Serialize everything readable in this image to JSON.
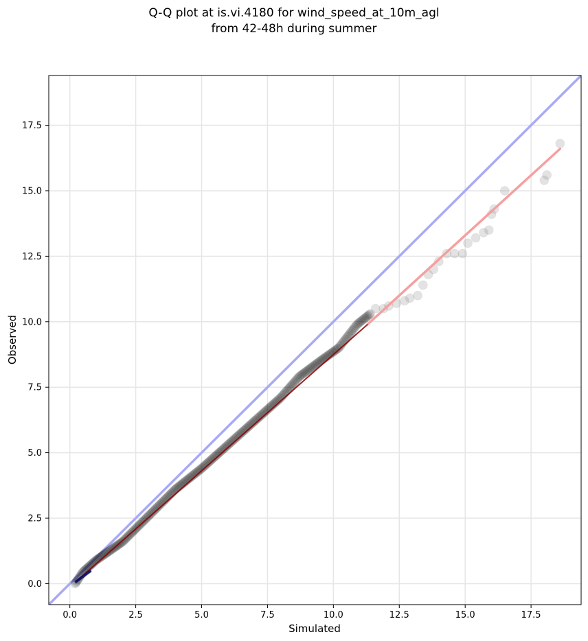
{
  "chart_data": {
    "type": "scatter",
    "title": "Q-Q plot at is.vi.4180 for wind_speed_at_10m_agl",
    "subtitle": "from 42-48h during summer",
    "xlabel": "Simulated",
    "ylabel": "Observed",
    "xlim": [
      -0.8,
      19.4
    ],
    "ylim": [
      -0.8,
      19.4
    ],
    "xticks": [
      "0.0",
      "2.5",
      "5.0",
      "7.5",
      "10.0",
      "12.5",
      "15.0",
      "17.5"
    ],
    "yticks": [
      "0.0",
      "2.5",
      "5.0",
      "7.5",
      "10.0",
      "12.5",
      "15.0",
      "17.5"
    ],
    "xtick_values": [
      0,
      2.5,
      5,
      7.5,
      10,
      12.5,
      15,
      17.5
    ],
    "ytick_values": [
      0,
      2.5,
      5,
      7.5,
      10,
      12.5,
      15,
      17.5
    ],
    "grid": true,
    "reference_line": {
      "x": [
        -0.8,
        19.4
      ],
      "y": [
        -0.8,
        19.4
      ],
      "color": "#a8aaf4"
    },
    "fit_line_dense": {
      "x": [
        0.2,
        11.3
      ],
      "y": [
        0.05,
        9.9
      ],
      "color": "#8b0000"
    },
    "fit_line_tail": {
      "x": [
        11.3,
        18.6
      ],
      "y": [
        9.9,
        16.6
      ],
      "color": "#f4a0a0"
    },
    "dense_segment": {
      "x": [
        0.2,
        0.8
      ],
      "y": [
        0.05,
        0.5
      ],
      "color": "#0b0b6b"
    },
    "points_dense_envelope": [
      [
        0.2,
        0.0
      ],
      [
        0.5,
        0.45
      ],
      [
        1.0,
        0.9
      ],
      [
        2.0,
        1.6
      ],
      [
        3.0,
        2.6
      ],
      [
        4.0,
        3.6
      ],
      [
        5.0,
        4.4
      ],
      [
        6.0,
        5.3
      ],
      [
        7.0,
        6.2
      ],
      [
        8.0,
        7.1
      ],
      [
        8.7,
        7.9
      ],
      [
        9.5,
        8.5
      ],
      [
        10.2,
        9.0
      ],
      [
        10.9,
        9.9
      ],
      [
        11.4,
        10.3
      ]
    ],
    "points_tail": [
      [
        11.6,
        10.5
      ],
      [
        11.9,
        10.5
      ],
      [
        12.1,
        10.6
      ],
      [
        12.4,
        10.7
      ],
      [
        12.7,
        10.8
      ],
      [
        12.9,
        10.9
      ],
      [
        13.2,
        11.0
      ],
      [
        13.4,
        11.4
      ],
      [
        13.6,
        11.8
      ],
      [
        13.8,
        12.0
      ],
      [
        14.0,
        12.3
      ],
      [
        14.3,
        12.6
      ],
      [
        14.6,
        12.6
      ],
      [
        14.9,
        12.6
      ],
      [
        15.1,
        13.0
      ],
      [
        15.4,
        13.2
      ],
      [
        15.7,
        13.4
      ],
      [
        15.9,
        13.5
      ],
      [
        16.0,
        14.1
      ],
      [
        16.1,
        14.3
      ],
      [
        16.5,
        15.0
      ],
      [
        18.0,
        15.4
      ],
      [
        18.1,
        15.6
      ],
      [
        18.6,
        16.8
      ]
    ]
  }
}
